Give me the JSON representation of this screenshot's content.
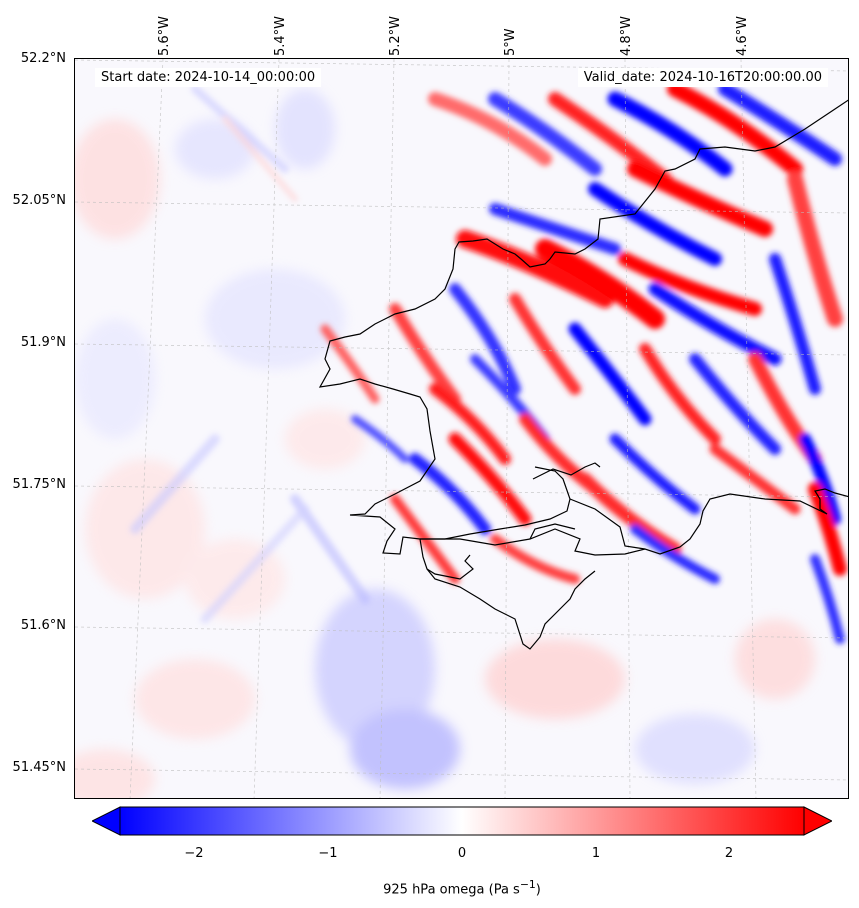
{
  "map": {
    "lat_labels": [
      "52.2°N",
      "52.05°N",
      "51.9°N",
      "51.75°N",
      "51.6°N",
      "51.45°N"
    ],
    "lon_labels": [
      "5.6°W",
      "5.4°W",
      "5.2°W",
      "5°W",
      "4.8°W",
      "4.6°W"
    ],
    "start_date": "Start date: 2024-10-14_00:00:00",
    "valid_date": "Valid_date: 2024-10-16T20:00:00.00",
    "field": "925 hPa omega",
    "coastline_color": "#000000",
    "gridline_style": "dashed light grey"
  },
  "colorbar": {
    "ticks": [
      "−2",
      "−1",
      "0",
      "1",
      "2"
    ],
    "label": "925 hPa omega (Pa s",
    "label_sup": "−1",
    "label_end": ")",
    "range": [
      -2.75,
      2.75
    ],
    "extend": "both",
    "colormap": [
      "#0000ff",
      "#ffffff",
      "#ff0000"
    ]
  }
}
